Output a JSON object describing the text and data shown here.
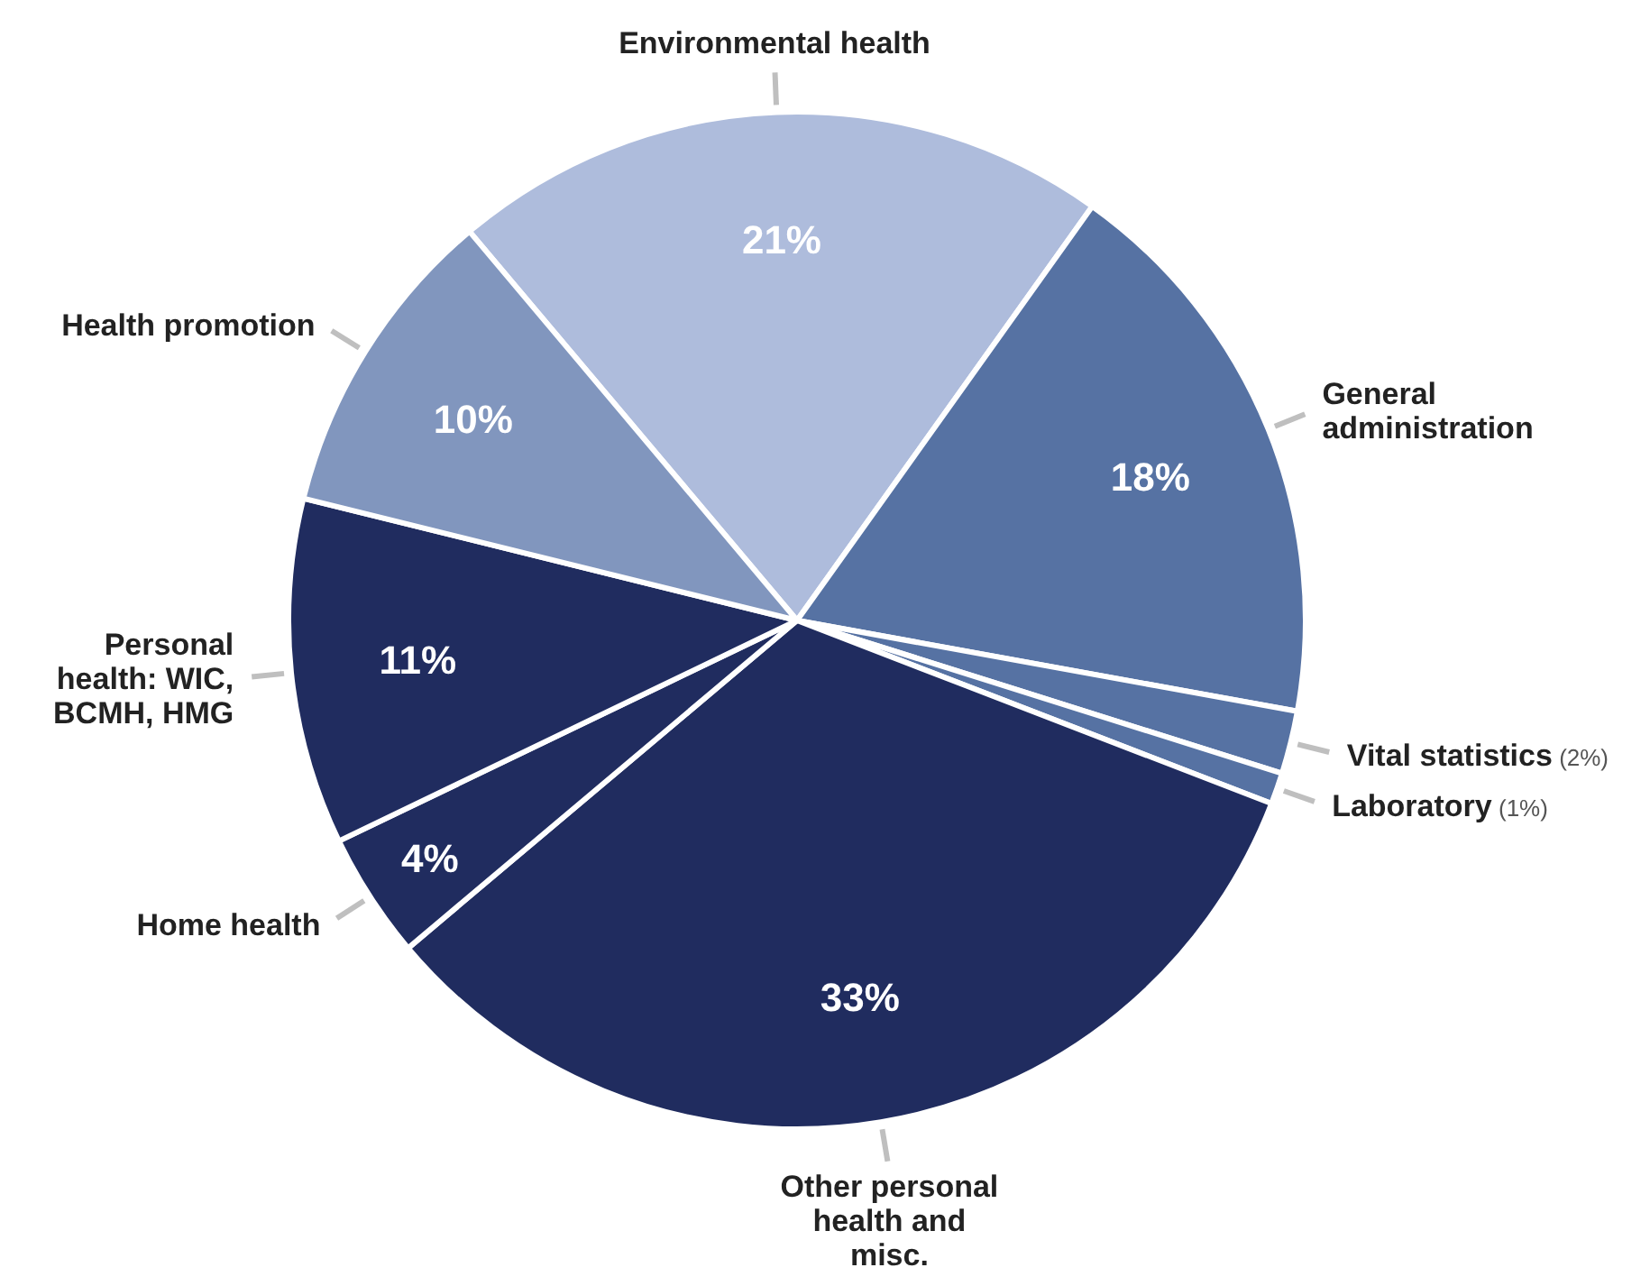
{
  "chart_data": {
    "type": "pie",
    "categories": [
      "Environmental health",
      "General administration",
      "Vital statistics",
      "Laboratory",
      "Other personal health and misc.",
      "Home health",
      "Personal health: WIC, BCMH, HMG",
      "Health promotion"
    ],
    "values": [
      21,
      18,
      2,
      1,
      33,
      4,
      11,
      10
    ],
    "colors": [
      "#aebcdc",
      "#5672a3",
      "#5672a3",
      "#5672a3",
      "#202c5f",
      "#202c5f",
      "#202c5f",
      "#8196be"
    ],
    "value_labels": [
      "21%",
      "18%",
      "(2%)",
      "(1%)",
      "33%",
      "4%",
      "11%",
      "10%"
    ]
  }
}
